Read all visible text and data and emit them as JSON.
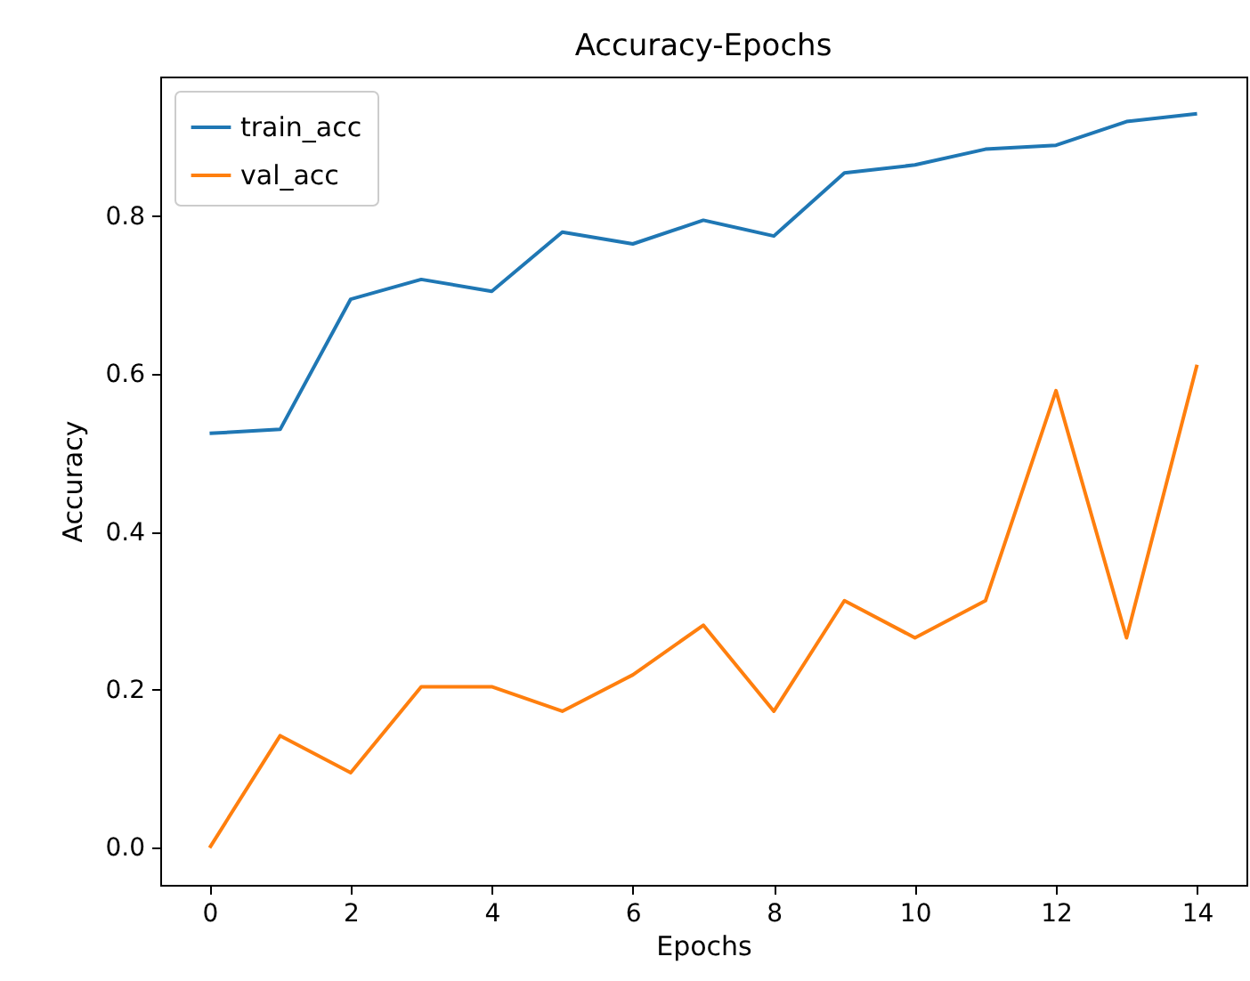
{
  "chart_data": {
    "type": "line",
    "title": "Accuracy-Epochs",
    "xlabel": "Epochs",
    "ylabel": "Accuracy",
    "x": [
      0,
      1,
      2,
      3,
      4,
      5,
      6,
      7,
      8,
      9,
      10,
      11,
      12,
      13,
      14
    ],
    "series": [
      {
        "name": "train_acc",
        "color": "#1f77b4",
        "values": [
          0.525,
          0.53,
          0.695,
          0.72,
          0.705,
          0.78,
          0.765,
          0.795,
          0.775,
          0.855,
          0.865,
          0.885,
          0.89,
          0.92,
          0.93
        ]
      },
      {
        "name": "val_acc",
        "color": "#ff7f0e",
        "values": [
          0.0,
          0.142,
          0.095,
          0.204,
          0.204,
          0.173,
          0.219,
          0.282,
          0.173,
          0.313,
          0.266,
          0.313,
          0.579,
          0.266,
          0.612
        ]
      }
    ],
    "xlim": [
      -0.7,
      14.7
    ],
    "ylim": [
      -0.047,
      0.977
    ],
    "xticks": [
      0,
      2,
      4,
      6,
      8,
      10,
      12,
      14
    ],
    "yticks": [
      {
        "value": 0,
        "label": "0.0"
      },
      {
        "value": 0.2,
        "label": "0.2"
      },
      {
        "value": 0.4,
        "label": "0.4"
      },
      {
        "value": 0.6,
        "label": "0.6"
      },
      {
        "value": 0.8,
        "label": "0.8"
      }
    ],
    "legend": "top left",
    "grid": false,
    "marker": "none",
    "line_style": "solid"
  }
}
